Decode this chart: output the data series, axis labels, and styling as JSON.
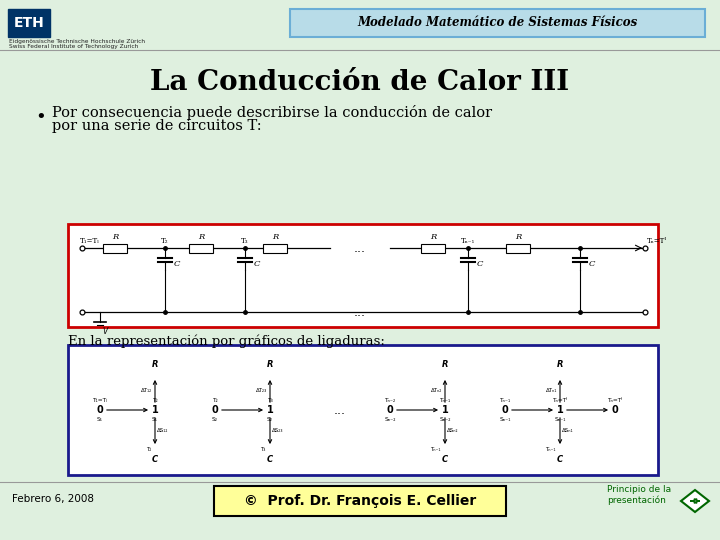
{
  "bg_color": "#dff0df",
  "header_bg": "#b8dce8",
  "header_border": "#6baed6",
  "header_text": "Modelado Matemático de Sistemas Físicos",
  "header_text_color": "#000000",
  "title_text": "La Conducción de Calor III",
  "title_color": "#000000",
  "bullet_text_line1": "Por consecuencia puede describirse la conducción de calor",
  "bullet_text_line2": "por una serie de circuitos T:",
  "sub_text": "En la representación por gráficos de ligaduras:",
  "footer_date": "Febrero 6, 2008",
  "footer_copy": "©  Prof. Dr. François E. Cellier",
  "footer_right": "Principio de la\npresentación",
  "footer_copy_bg": "#ffff99",
  "eth_logo_color": "#003366",
  "eth_text1": "Eidgenössische Technische Hochschule Zürich",
  "eth_text2": "Swiss Federal Institute of Technology Zurich",
  "red_box_color": "#cc0000",
  "blue_box_color": "#1a1a8c",
  "divider_color": "#999999",
  "nav_color": "#006600"
}
